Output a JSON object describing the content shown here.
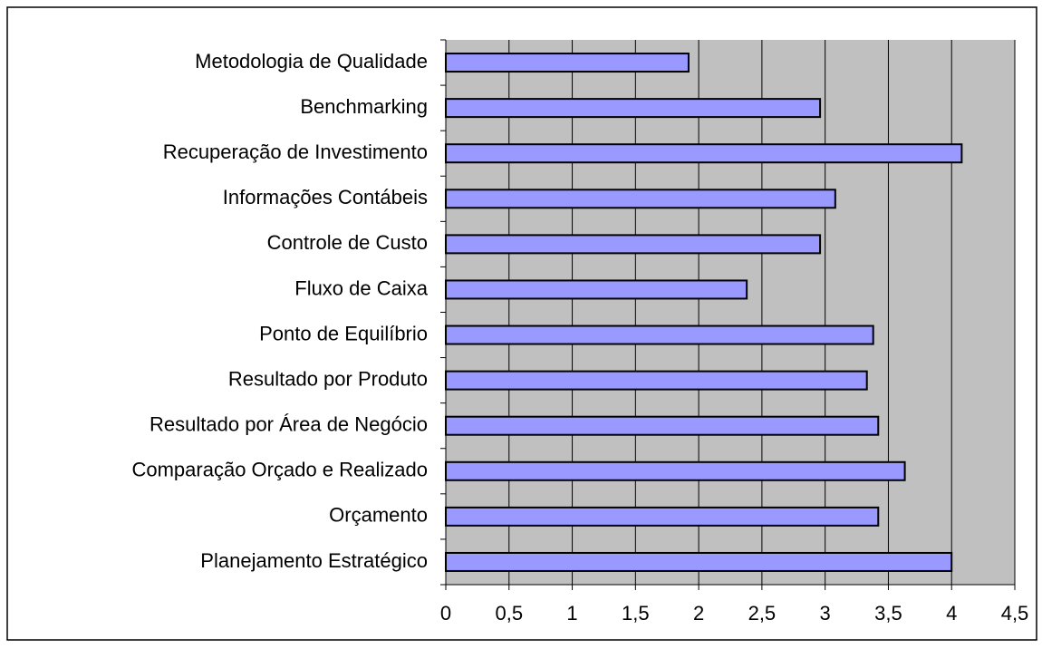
{
  "chart_data": {
    "type": "bar",
    "orientation": "horizontal",
    "categories": [
      "Metodologia de Qualidade",
      "Benchmarking",
      "Recuperação de Investimento",
      "Informações Contábeis",
      "Controle de Custo",
      "Fluxo de Caixa",
      "Ponto de Equilíbrio",
      "Resultado por Produto",
      "Resultado por Área de Negócio",
      "Comparação Orçado e Realizado",
      "Orçamento",
      "Planejamento Estratégico"
    ],
    "values": [
      1.92,
      2.96,
      4.08,
      3.08,
      2.96,
      2.38,
      3.38,
      3.33,
      3.42,
      3.63,
      3.42,
      4.0
    ],
    "color": "#9999ff",
    "xlim": [
      0,
      4.5
    ],
    "xticks": [
      0,
      {
        "value": 0.5,
        "label": "0,5"
      },
      1,
      {
        "value": 1.5,
        "label": "1,5"
      },
      2,
      {
        "value": 2.5,
        "label": "2,5"
      },
      3,
      {
        "value": 3.5,
        "label": "3,5"
      },
      4,
      {
        "value": 4.5,
        "label": "4,5"
      }
    ],
    "grid": true
  }
}
